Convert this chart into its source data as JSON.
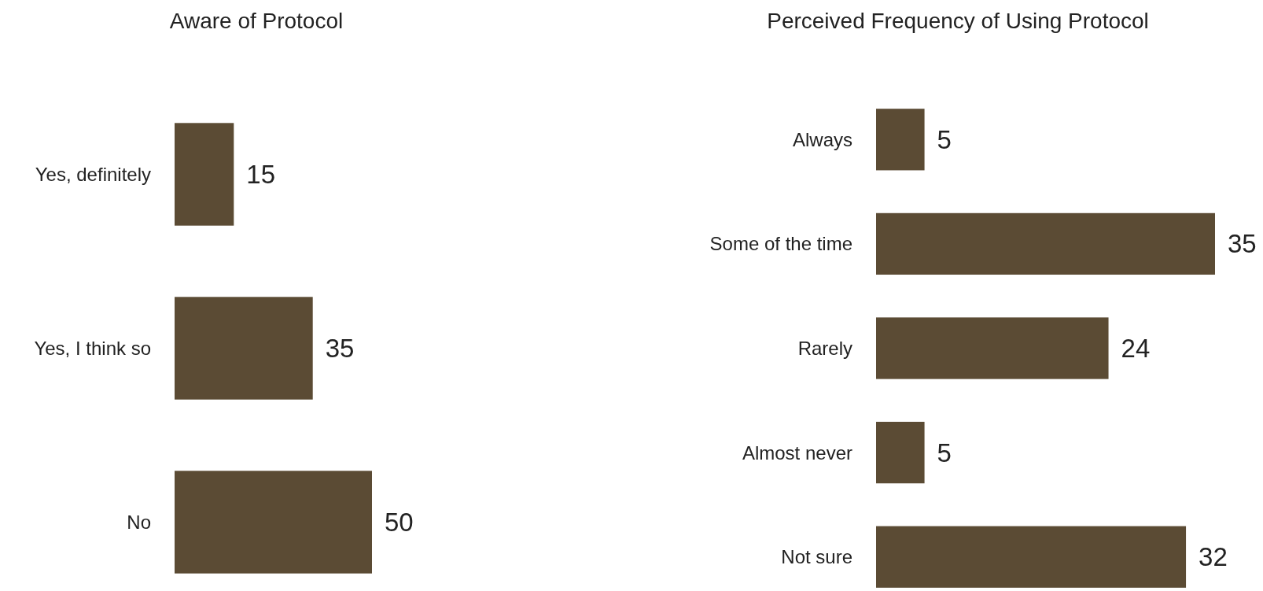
{
  "chart_data": [
    {
      "type": "bar",
      "orientation": "horizontal",
      "title": "Aware of Protocol",
      "categories": [
        "Yes, definitely",
        "Yes, I think so",
        "No"
      ],
      "values": [
        15,
        35,
        50
      ],
      "color": "#5b4b34",
      "data_labels": true
    },
    {
      "type": "bar",
      "orientation": "horizontal",
      "title": "Perceived Frequency of Using Protocol",
      "categories": [
        "Always",
        "Some of the time",
        "Rarely",
        "Almost never",
        "Not sure"
      ],
      "values": [
        5,
        35,
        24,
        5,
        32
      ],
      "color": "#5b4b34",
      "data_labels": true
    }
  ]
}
